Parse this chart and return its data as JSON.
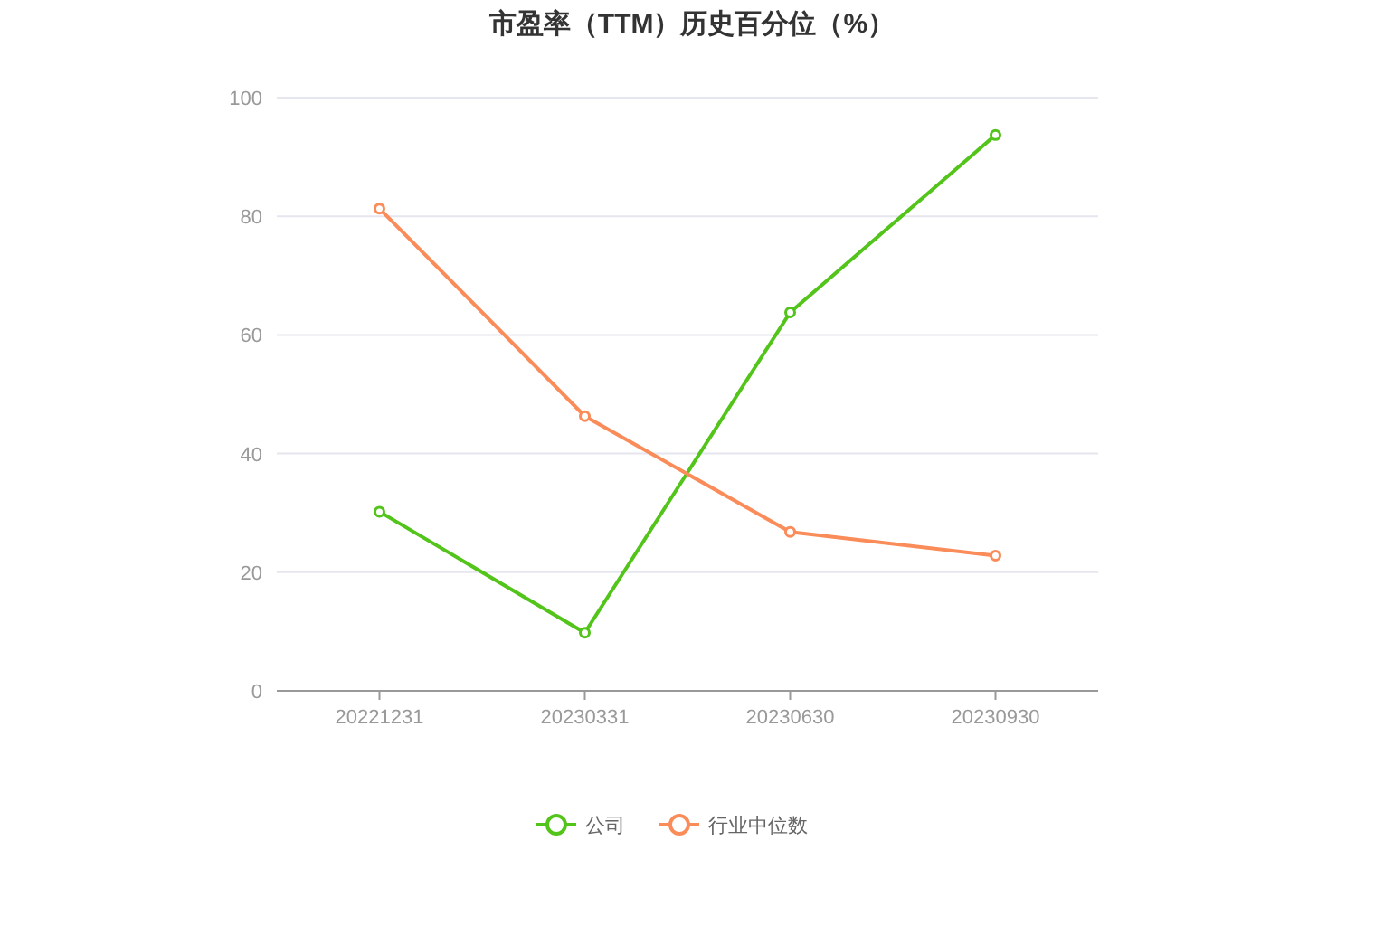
{
  "chart_data": {
    "type": "line",
    "title": "市盈率（TTM）历史百分位（%）",
    "categories": [
      "20221231",
      "20230331",
      "20230630",
      "20230930"
    ],
    "series": [
      {
        "name": "公司",
        "color": "#52c41a",
        "values": [
          30.2,
          9.8,
          63.8,
          93.7
        ]
      },
      {
        "name": "行业中位数",
        "color": "#fa8c5a",
        "values": [
          81.3,
          46.3,
          26.8,
          22.8
        ]
      }
    ],
    "ylim": [
      0,
      100
    ],
    "yticks": [
      0,
      20,
      40,
      60,
      80,
      100
    ],
    "grid": "y",
    "legend": "bottom",
    "marker": "circle",
    "line_style": "solid"
  }
}
